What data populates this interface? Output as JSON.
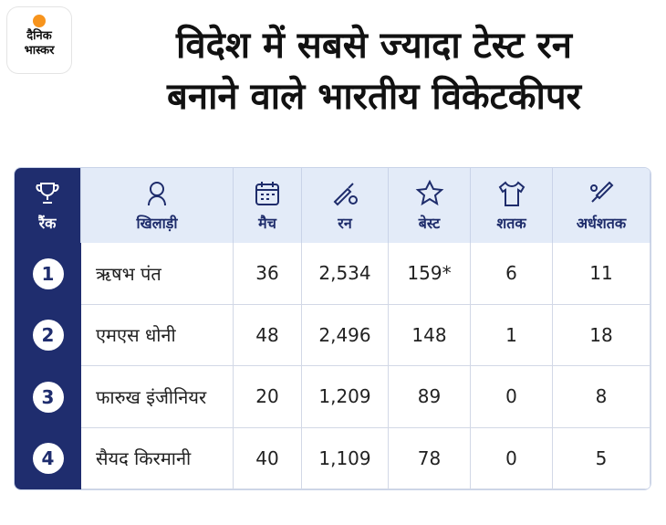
{
  "header": {
    "logo": [
      "दैनिक",
      "भास्कर"
    ],
    "title": [
      "विदेश में सबसे ज्यादा टेस्ट रन",
      "बनाने वाले भारतीय विकेटकीपर"
    ]
  },
  "table": {
    "columns": [
      "रैंक",
      "खिलाड़ी",
      "मैच",
      "रन",
      "बेस्ट",
      "शतक",
      "अर्धशतक"
    ],
    "rows": [
      [
        "1",
        "ऋषभ पंत",
        "36",
        "2,534",
        "159*",
        "6",
        "11"
      ],
      [
        "2",
        "एमएस धोनी",
        "48",
        "2,496",
        "148",
        "1",
        "18"
      ],
      [
        "3",
        "फारुख इंजीनियर",
        "20",
        "1,209",
        "89",
        "0",
        "8"
      ],
      [
        "4",
        "सैयद किरमानी",
        "40",
        "1,109",
        "78",
        "0",
        "5"
      ]
    ]
  }
}
